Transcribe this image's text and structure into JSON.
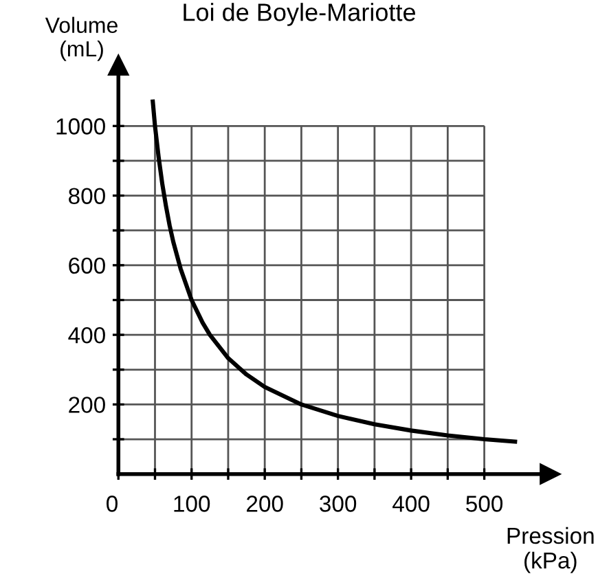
{
  "chart_data": {
    "type": "line",
    "title": "Loi de Boyle-Mariotte",
    "xlabel": "Pression\n(kPa)",
    "ylabel": "Volume\n(mL)",
    "x": [
      47,
      50,
      55,
      60,
      65,
      70,
      75,
      85,
      100,
      115,
      125,
      150,
      175,
      200,
      250,
      300,
      350,
      400,
      450,
      500,
      542
    ],
    "series": [
      {
        "color": "#000000",
        "values": [
          1070,
          1000,
          910,
          833,
          770,
          714,
          667,
          590,
          500,
          435,
          400,
          333,
          286,
          250,
          200,
          167,
          143,
          125,
          111,
          100,
          93
        ]
      }
    ],
    "xlim": [
      0,
      590
    ],
    "ylim": [
      0,
      1175
    ],
    "xticks": [
      0,
      {
        "value": 50,
        "label": null
      },
      100,
      {
        "value": 150,
        "label": null
      },
      200,
      {
        "value": 250,
        "label": null
      },
      300,
      {
        "value": 350,
        "label": null
      },
      400,
      {
        "value": 450,
        "label": null
      },
      500
    ],
    "yticks": [
      {
        "value": 100,
        "label": null
      },
      200,
      {
        "value": 300,
        "label": null
      },
      400,
      {
        "value": 500,
        "label": null
      },
      600,
      {
        "value": 700,
        "label": null
      },
      800,
      {
        "value": 900,
        "label": null
      },
      1000
    ],
    "grid": true,
    "marker": "none",
    "line_style": "solid"
  }
}
